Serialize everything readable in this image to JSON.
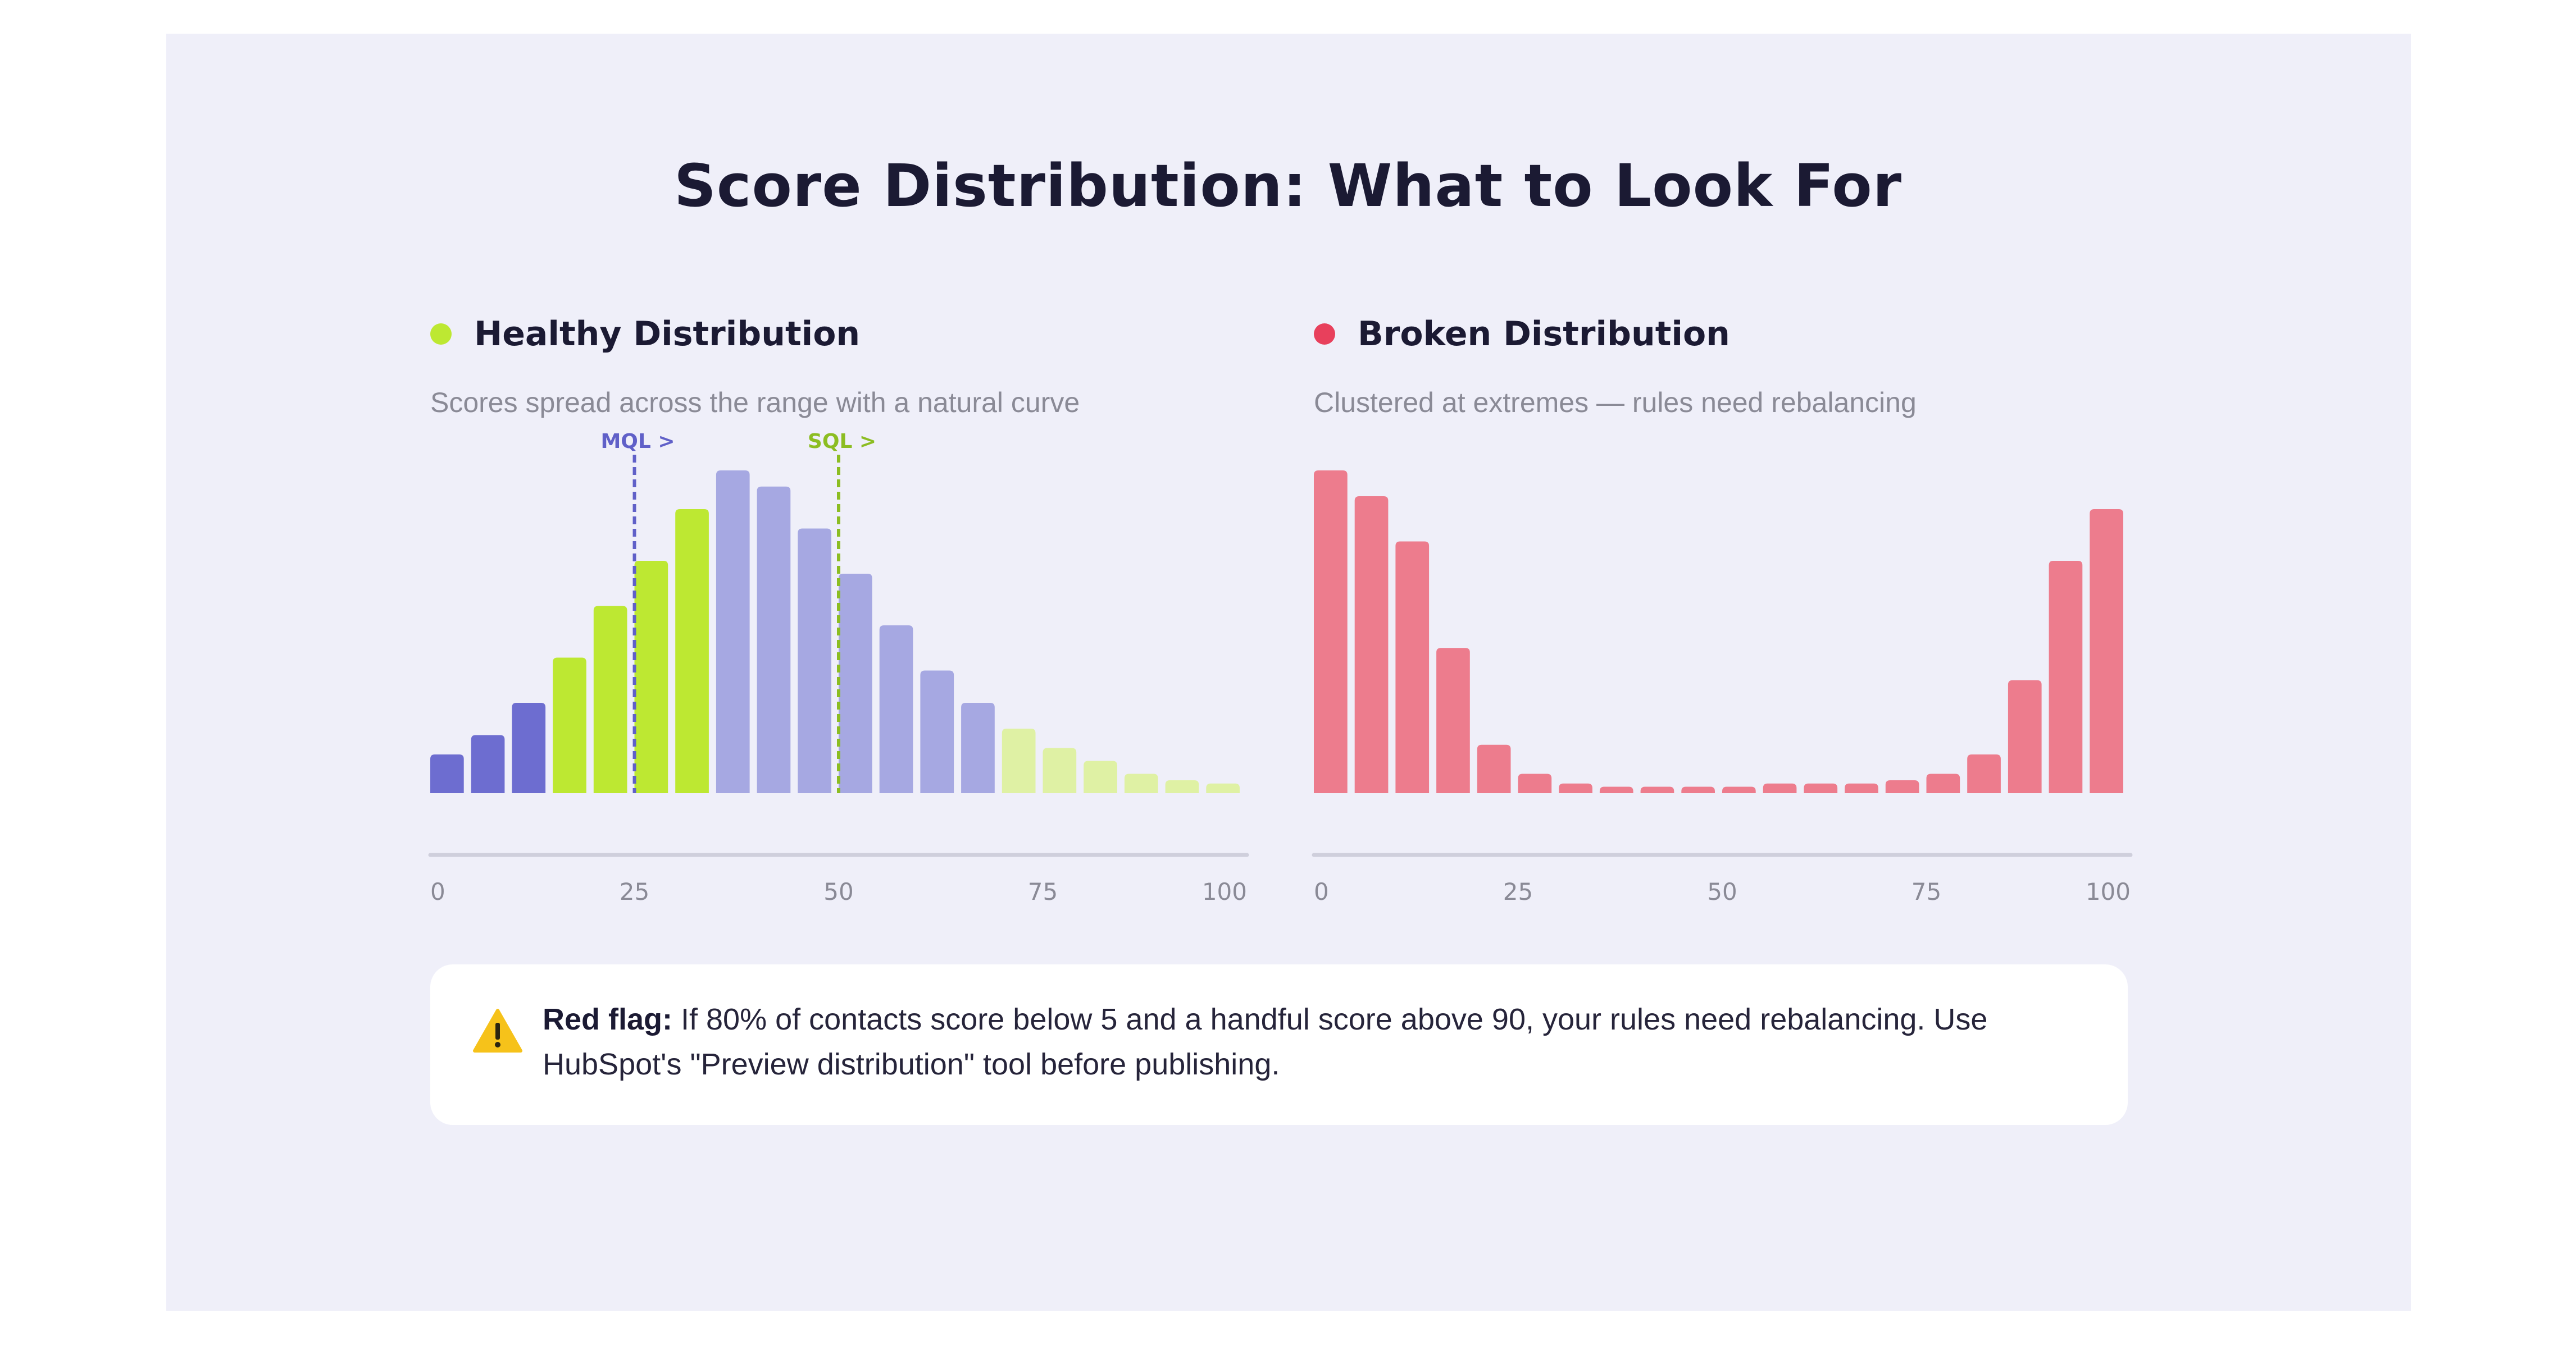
{
  "page": {
    "title": "Score Distribution: What to Look For",
    "background": "#efeff9",
    "alert": {
      "icon": "warning-icon",
      "label": "Red flag:",
      "text": " If 80% of contacts score below 5 and a handful score above 90, your rules need rebalancing. Use HubSpot's \"Preview distribution\" tool before publishing."
    }
  },
  "colors": {
    "healthy_dot": "#bde832",
    "broken_dot": "#e8405c",
    "dark_purple": "#6d6dd0",
    "green": "#bde832",
    "light_purple": "#a6a8e2",
    "light_green": "#dff1a4",
    "pink": "#ed7c8d",
    "axis": "#cfcfdc",
    "mql_line": "#6060c8",
    "sql_line": "#8cbd22"
  },
  "chart_data": [
    {
      "type": "bar",
      "title": "Healthy Distribution",
      "subtitle": "Scores spread across the range with a natural curve",
      "x_ticks": [
        "0",
        "25",
        "50",
        "75",
        "100"
      ],
      "xlim": [
        0,
        100
      ],
      "ylim": [
        0,
        100
      ],
      "grid": false,
      "values": [
        12,
        18,
        28,
        42,
        58,
        72,
        88,
        100,
        95,
        82,
        68,
        52,
        38,
        28,
        20,
        14,
        10,
        6,
        4,
        3
      ],
      "bar_colors": [
        "dark_purple",
        "dark_purple",
        "dark_purple",
        "green",
        "green",
        "green",
        "green",
        "light_purple",
        "light_purple",
        "light_purple",
        "light_purple",
        "light_purple",
        "light_purple",
        "light_purple",
        "light_green",
        "light_green",
        "light_green",
        "light_green",
        "light_green",
        "light_green"
      ],
      "annotations": [
        {
          "label": "MQL >",
          "x": 25,
          "color": "mql_line"
        },
        {
          "label": "SQL >",
          "x": 50,
          "color": "sql_line"
        }
      ]
    },
    {
      "type": "bar",
      "title": "Broken Distribution",
      "subtitle": "Clustered at extremes — rules need rebalancing",
      "x_ticks": [
        "0",
        "25",
        "50",
        "75",
        "100"
      ],
      "xlim": [
        0,
        100
      ],
      "ylim": [
        0,
        100
      ],
      "grid": false,
      "values": [
        100,
        92,
        78,
        45,
        15,
        6,
        3,
        2,
        2,
        2,
        2,
        3,
        3,
        3,
        4,
        6,
        12,
        35,
        72,
        88
      ],
      "bar_colors": [
        "pink",
        "pink",
        "pink",
        "pink",
        "pink",
        "pink",
        "pink",
        "pink",
        "pink",
        "pink",
        "pink",
        "pink",
        "pink",
        "pink",
        "pink",
        "pink",
        "pink",
        "pink",
        "pink",
        "pink"
      ],
      "annotations": []
    }
  ]
}
